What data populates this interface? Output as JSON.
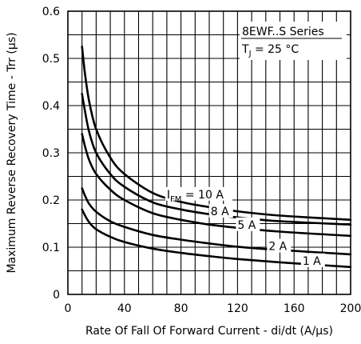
{
  "chart_data": {
    "type": "line",
    "xlabel": "Rate Of Fall Of Forward Current - di/dt (A/µs)",
    "ylabel": "Maximum Reverse Recovery Time - Trr (µs)",
    "xlim": [
      0,
      200
    ],
    "ylim": [
      0,
      0.6
    ],
    "x_ticks": [
      0,
      40,
      80,
      120,
      160,
      200
    ],
    "y_ticks": [
      0,
      0.1,
      0.2,
      0.3,
      0.4,
      0.5,
      0.6
    ],
    "grid": true,
    "annotation": {
      "series_name": "8EWF..S Series",
      "condition_prefix": "T",
      "condition_sub": "J",
      "condition_suffix": " = 25 °C"
    },
    "series": [
      {
        "label": "= 10 A",
        "label_prefix": "I",
        "label_sub": "FM",
        "x": [
          10,
          12,
          15,
          20,
          30,
          40,
          60,
          80,
          100,
          120,
          150,
          200
        ],
        "y": [
          0.525,
          0.47,
          0.41,
          0.35,
          0.29,
          0.255,
          0.215,
          0.196,
          0.185,
          0.176,
          0.167,
          0.158
        ]
      },
      {
        "label": "8 A",
        "x": [
          10,
          12,
          15,
          20,
          30,
          40,
          60,
          80,
          100,
          120,
          150,
          200
        ],
        "y": [
          0.425,
          0.39,
          0.345,
          0.3,
          0.255,
          0.228,
          0.195,
          0.18,
          0.17,
          0.163,
          0.155,
          0.148
        ]
      },
      {
        "label": "5 A",
        "x": [
          10,
          12,
          15,
          20,
          30,
          40,
          60,
          80,
          100,
          120,
          150,
          200
        ],
        "y": [
          0.34,
          0.315,
          0.285,
          0.255,
          0.222,
          0.2,
          0.172,
          0.158,
          0.148,
          0.141,
          0.133,
          0.124
        ]
      },
      {
        "label": "2 A",
        "x": [
          10,
          12,
          15,
          20,
          30,
          40,
          60,
          80,
          100,
          120,
          150,
          200
        ],
        "y": [
          0.225,
          0.21,
          0.192,
          0.175,
          0.155,
          0.143,
          0.126,
          0.116,
          0.108,
          0.101,
          0.094,
          0.085
        ]
      },
      {
        "label": "1 A",
        "x": [
          10,
          12,
          15,
          20,
          30,
          40,
          60,
          80,
          100,
          120,
          150,
          200
        ],
        "y": [
          0.18,
          0.168,
          0.153,
          0.138,
          0.122,
          0.111,
          0.097,
          0.088,
          0.081,
          0.075,
          0.068,
          0.058
        ]
      }
    ]
  }
}
